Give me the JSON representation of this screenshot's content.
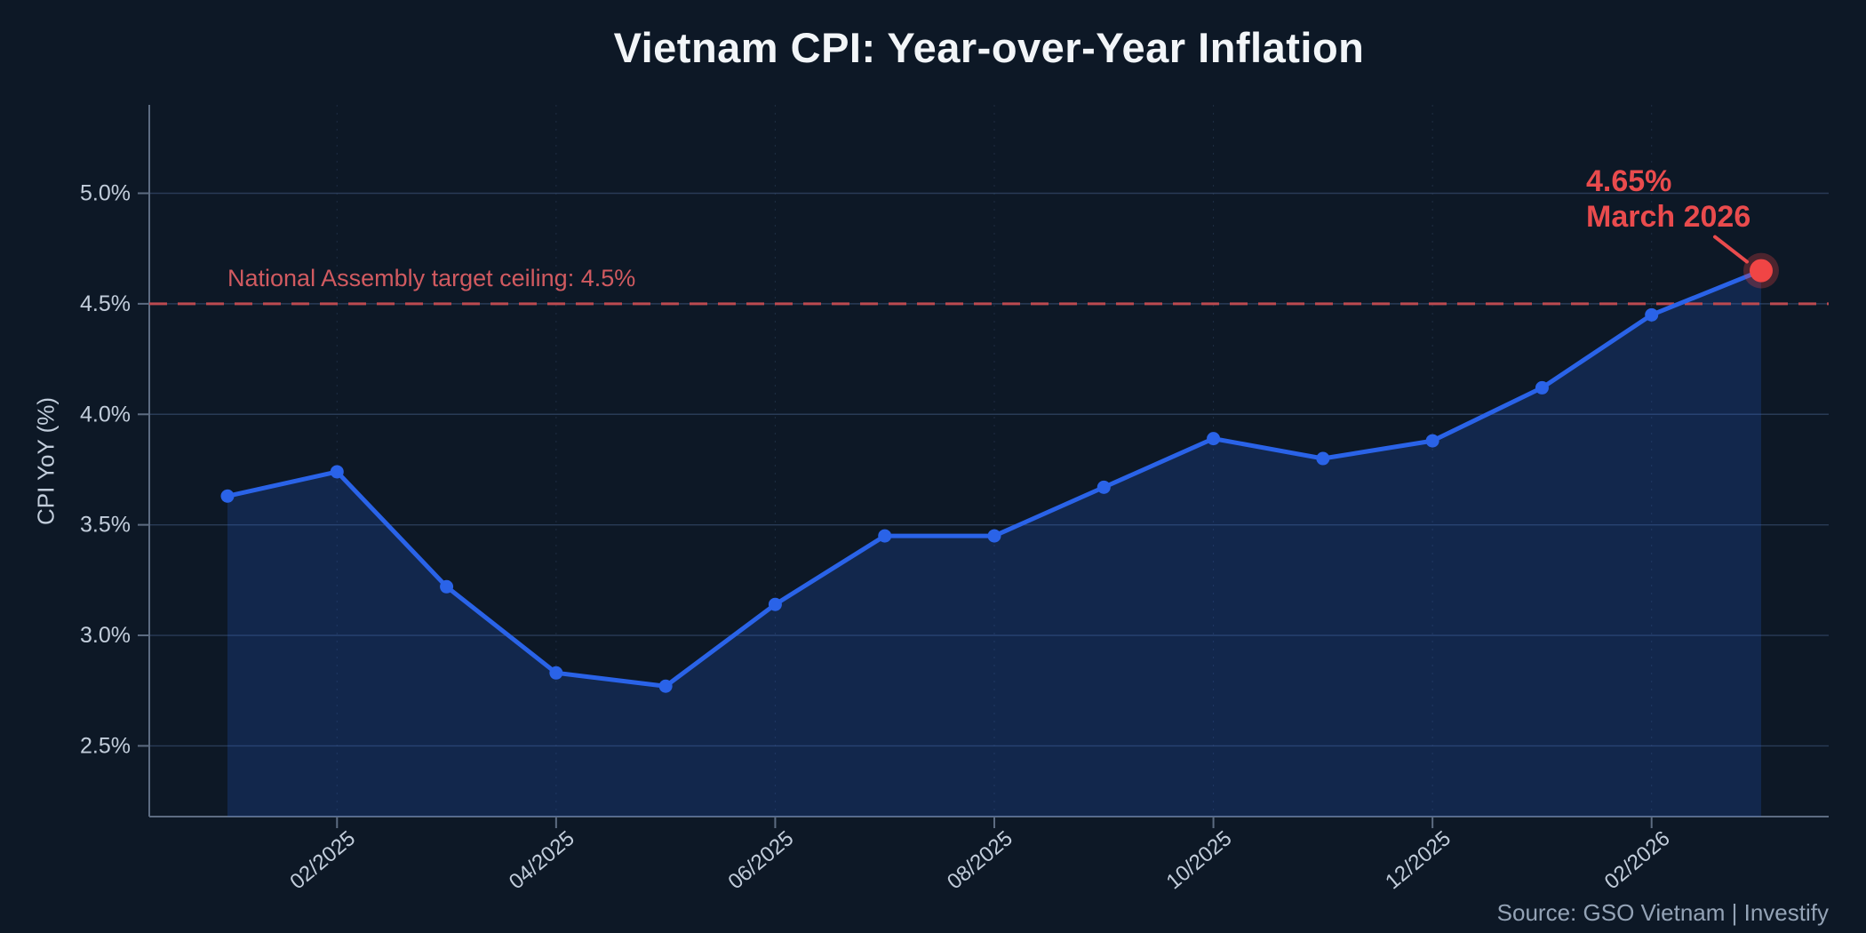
{
  "title": "Vietnam CPI: Year-over-Year Inflation",
  "source_note": "Source: GSO Vietnam  |  Investify",
  "colors": {
    "background": "#0d1826",
    "line": "#2a63e8",
    "fill": "rgba(42,99,232,0.20)",
    "grid": "#334766",
    "spine": "#5d6c82",
    "tick_label": "#c2cddb",
    "title_text": "#f2f5f8",
    "target_line": "#bc4a50",
    "target_text": "#d15a60",
    "highlight": "#f04545",
    "annotation_text": "#e94b4d",
    "source_text": "#94a3b6"
  },
  "chart_data": {
    "type": "line",
    "title": "Vietnam CPI: Year-over-Year Inflation",
    "xlabel": "",
    "ylabel": "CPI YoY (%)",
    "x": [
      "01/2025",
      "02/2025",
      "03/2025",
      "04/2025",
      "05/2025",
      "06/2025",
      "07/2025",
      "08/2025",
      "09/2025",
      "10/2025",
      "11/2025",
      "12/2025",
      "01/2026",
      "02/2026",
      "03/2026"
    ],
    "values": [
      3.63,
      3.74,
      3.22,
      2.83,
      2.77,
      3.14,
      3.45,
      3.45,
      3.67,
      3.89,
      3.8,
      3.88,
      4.12,
      4.45,
      4.65
    ],
    "series_name": "CPI YoY (%)",
    "x_tick_labels": [
      "02/2025",
      "04/2025",
      "06/2025",
      "08/2025",
      "10/2025",
      "12/2025",
      "02/2026"
    ],
    "y_ticks": [
      2.5,
      3.0,
      3.5,
      4.0,
      4.5,
      5.0
    ],
    "y_tick_labels": [
      "2.5%",
      "3.0%",
      "3.5%",
      "4.0%",
      "4.5%",
      "5.0%"
    ],
    "ylim": [
      2.18,
      5.4
    ],
    "grid": true,
    "legend": false,
    "area_fill": true,
    "target_line": {
      "value": 4.5,
      "label": "National Assembly target ceiling: 4.5%"
    },
    "annotation": {
      "line1": "4.65%",
      "line2": "March 2026",
      "point": "03/2026",
      "value": 4.65
    }
  }
}
